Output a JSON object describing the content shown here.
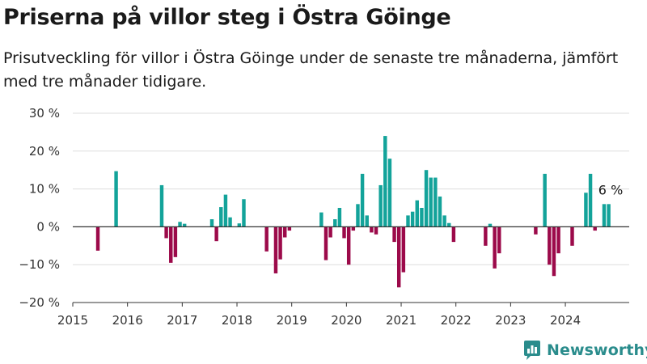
{
  "header": {
    "title": "Priserna på villor steg i Östra Göinge",
    "subtitle": "Prisutveckling för villor i Östra Göinge under de senaste tre månaderna, jämfört med tre månader tidigare."
  },
  "brand": {
    "name": "Newsworthy",
    "logo_icon": "bar-chart-logo-icon"
  },
  "colors": {
    "positive": "#13a39a",
    "negative": "#9c0a4a",
    "grid": "#dddddd",
    "axis": "#333333"
  },
  "chart_data": {
    "type": "bar",
    "title": "Priserna på villor steg i Östra Göinge",
    "subtitle": "Prisutveckling för villor i Östra Göinge under de senaste tre månaderna, jämfört med tre månader tidigare.",
    "xlabel": "",
    "ylabel": "",
    "x_unit": "month",
    "ylim": [
      -20,
      30
    ],
    "xlim": [
      "2015-01",
      "2025-03"
    ],
    "y_ticks": [
      30,
      20,
      10,
      0,
      -10,
      -20
    ],
    "y_tick_labels": [
      "30 %",
      "20 %",
      "10 %",
      "0 %",
      "−10 %",
      "−20 %"
    ],
    "x_ticks": [
      "2015-01",
      "2016-01",
      "2017-01",
      "2018-01",
      "2019-01",
      "2020-01",
      "2021-01",
      "2022-01",
      "2023-01",
      "2024-01"
    ],
    "x_tick_labels": [
      "2015",
      "2016",
      "2017",
      "2018",
      "2019",
      "2020",
      "2021",
      "2022",
      "2023",
      "2024"
    ],
    "grid": true,
    "legend": "none",
    "annotation": {
      "text": "6 %",
      "x": "2024-10"
    },
    "x": [
      "2015-06",
      "2015-10",
      "2016-08",
      "2016-09",
      "2016-10",
      "2016-11",
      "2016-12",
      "2017-01",
      "2017-07",
      "2017-08",
      "2017-09",
      "2017-10",
      "2017-11",
      "2018-01",
      "2018-02",
      "2018-07",
      "2018-09",
      "2018-10",
      "2018-11",
      "2018-12",
      "2019-07",
      "2019-08",
      "2019-09",
      "2019-10",
      "2019-11",
      "2019-12",
      "2020-01",
      "2020-02",
      "2020-03",
      "2020-04",
      "2020-05",
      "2020-06",
      "2020-07",
      "2020-08",
      "2020-09",
      "2020-10",
      "2020-11",
      "2020-12",
      "2021-01",
      "2021-02",
      "2021-03",
      "2021-04",
      "2021-05",
      "2021-06",
      "2021-07",
      "2021-08",
      "2021-09",
      "2021-10",
      "2021-11",
      "2021-12",
      "2022-07",
      "2022-08",
      "2022-09",
      "2022-10",
      "2023-06",
      "2023-08",
      "2023-09",
      "2023-10",
      "2023-11",
      "2024-02",
      "2024-05",
      "2024-06",
      "2024-07",
      "2024-09",
      "2024-10"
    ],
    "values": [
      -6.3,
      14.7,
      11,
      -3,
      -9.5,
      -8,
      1.3,
      0.8,
      2,
      -3.8,
      5.2,
      8.5,
      2.5,
      0.9,
      7.3,
      -6.5,
      -12.3,
      -8.6,
      -2.8,
      -1,
      3.8,
      -8.8,
      -2.8,
      2,
      5,
      -3,
      -10,
      -1,
      6,
      14,
      3,
      -1.5,
      -2,
      11,
      24,
      18,
      -4,
      -16,
      -12,
      3,
      4,
      7,
      5,
      15,
      13,
      13,
      8,
      3,
      1,
      -4,
      -5,
      0.8,
      -11,
      -7,
      -2,
      14,
      -10,
      -13,
      -7,
      -5,
      9,
      14,
      -1,
      6,
      6
    ]
  }
}
